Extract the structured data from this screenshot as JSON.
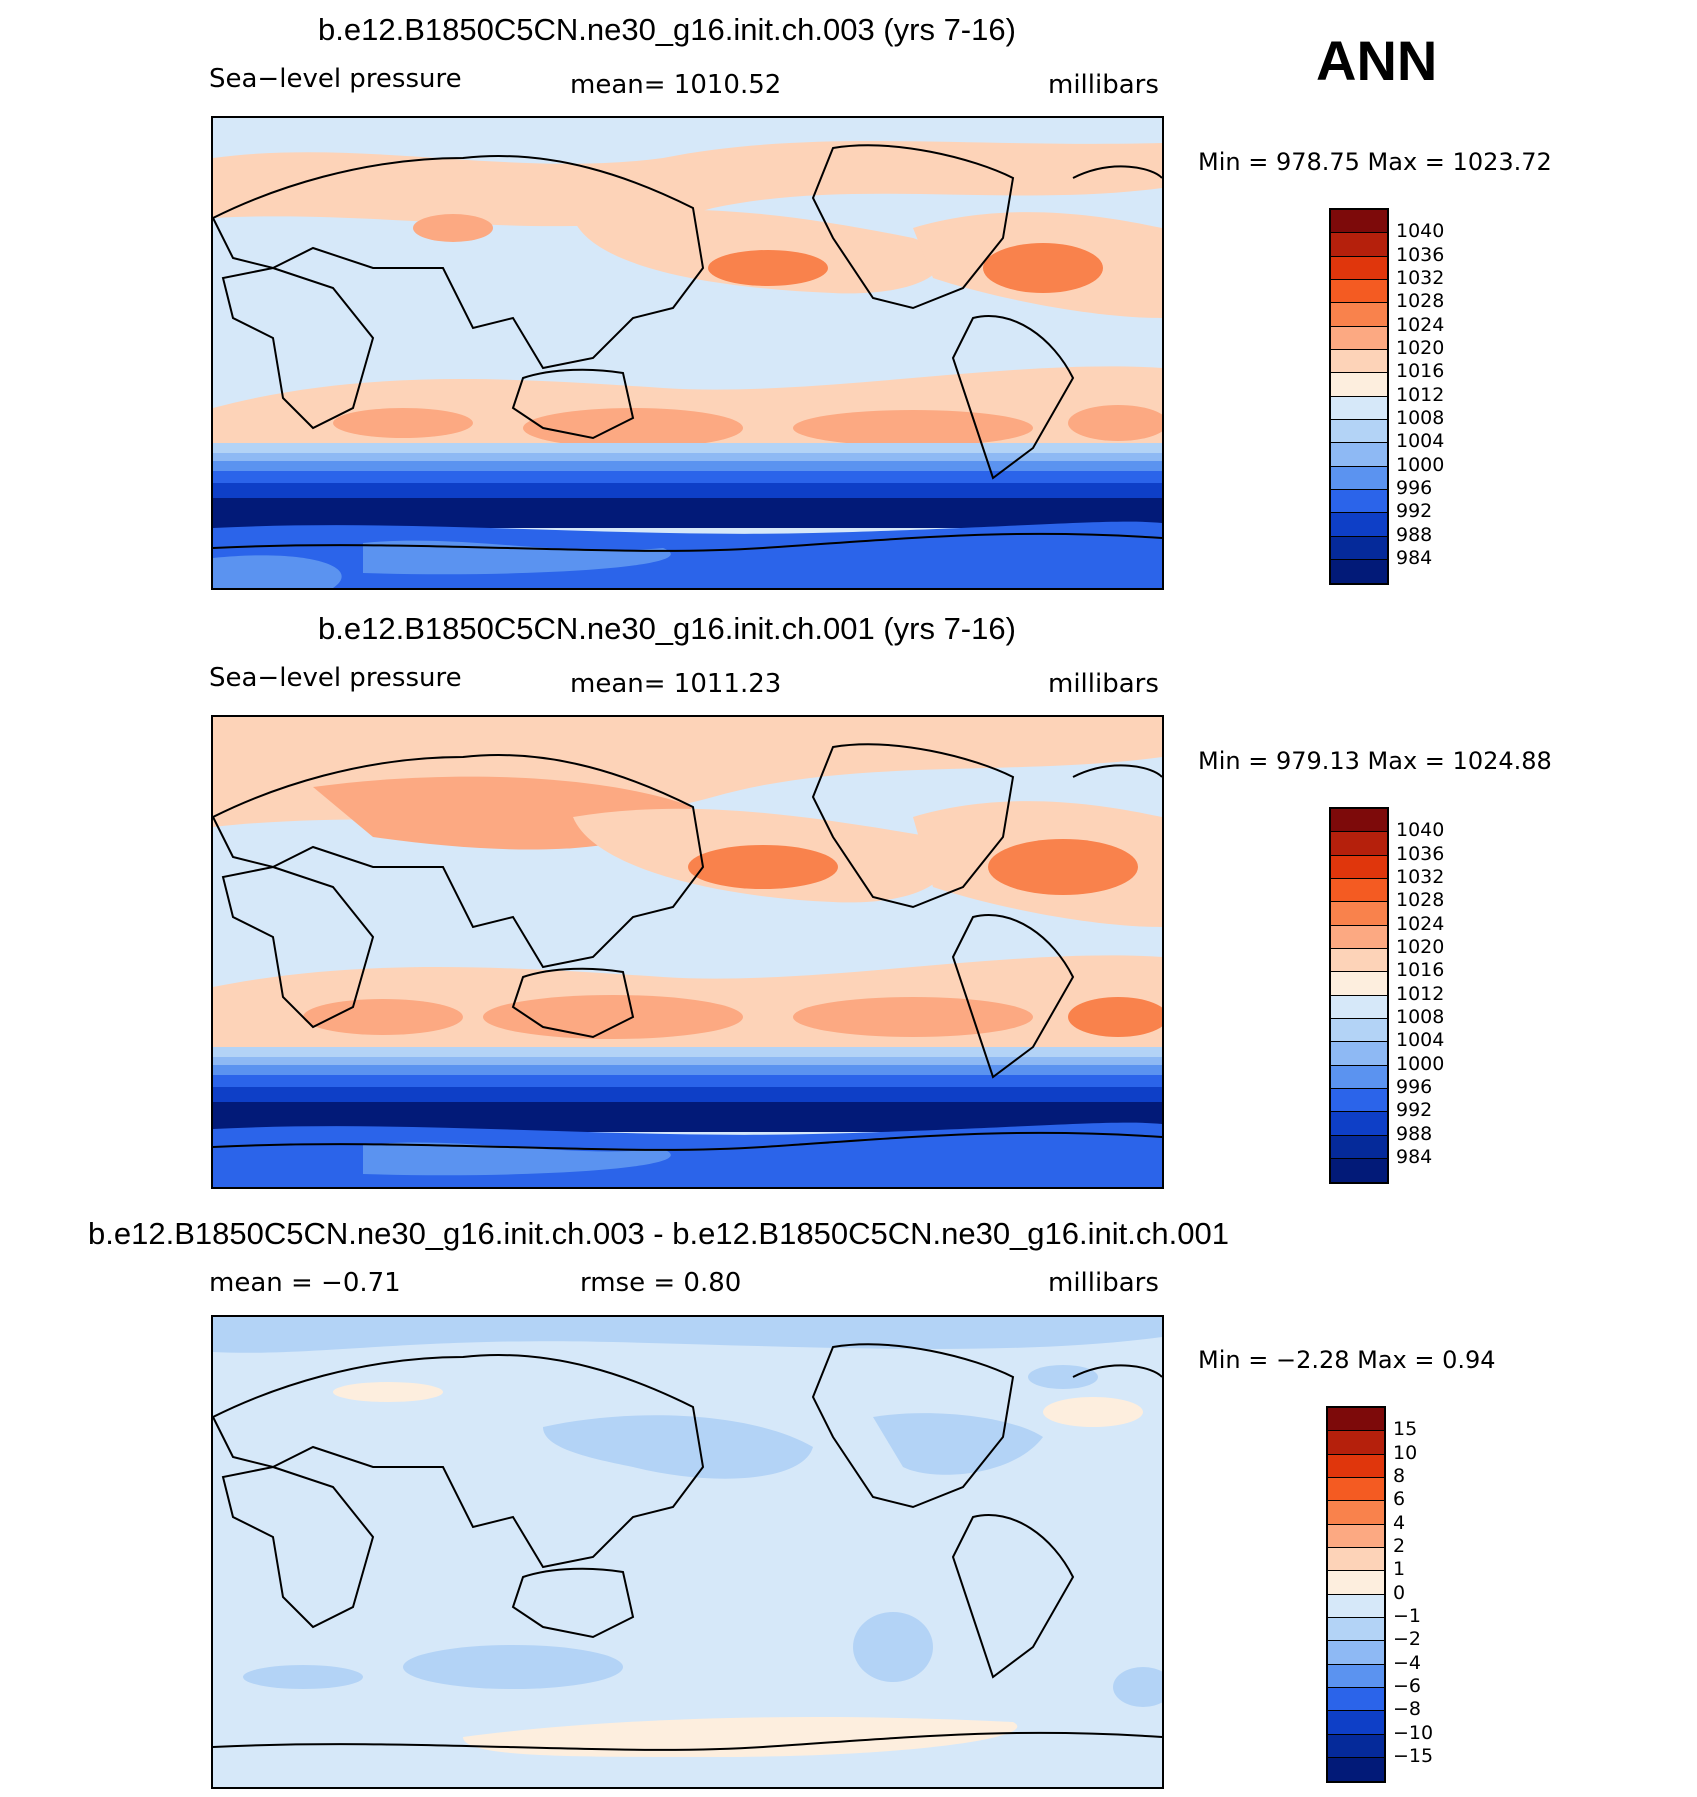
{
  "season": "ANN",
  "units": "millibars",
  "panels": [
    {
      "title": "b.e12.B1850C5CN.ne30_g16.init.ch.003 (yrs 7-16)",
      "left_label": "Sea−level  pressure",
      "center_label": "mean=  1010.52",
      "right_label": "millibars",
      "minmax": "Min  =  978.75  Max  =  1023.72"
    },
    {
      "title": "b.e12.B1850C5CN.ne30_g16.init.ch.001 (yrs 7-16)",
      "left_label": "Sea−level  pressure",
      "center_label": "mean=  1011.23",
      "right_label": "millibars",
      "minmax": "Min  =  979.13  Max  =  1024.88"
    },
    {
      "title": "b.e12.B1850C5CN.ne30_g16.init.ch.003 - b.e12.B1850C5CN.ne30_g16.init.ch.001",
      "left_label": "mean  =    −0.71",
      "center_label": "rmse  =      0.80",
      "right_label": "millibars",
      "minmax": "Min  =    −2.28  Max  =      0.94"
    }
  ],
  "chart_data": [
    {
      "type": "heatmap",
      "title": "b.e12.B1850C5CN.ne30_g16.init.ch.003 (yrs 7-16)",
      "variable": "Sea-level pressure",
      "mean": 1010.52,
      "min": 978.75,
      "max": 1023.72,
      "units": "millibars",
      "colorbar_labels": [
        "1040",
        "1036",
        "1032",
        "1028",
        "1024",
        "1020",
        "1016",
        "1012",
        "1008",
        "1004",
        "1000",
        "996",
        "992",
        "988",
        "984"
      ]
    },
    {
      "type": "heatmap",
      "title": "b.e12.B1850C5CN.ne30_g16.init.ch.001 (yrs 7-16)",
      "variable": "Sea-level pressure",
      "mean": 1011.23,
      "min": 979.13,
      "max": 1024.88,
      "units": "millibars",
      "colorbar_labels": [
        "1040",
        "1036",
        "1032",
        "1028",
        "1024",
        "1020",
        "1016",
        "1012",
        "1008",
        "1004",
        "1000",
        "996",
        "992",
        "988",
        "984"
      ]
    },
    {
      "type": "heatmap",
      "title": "b.e12.B1850C5CN.ne30_g16.init.ch.003 - b.e12.B1850C5CN.ne30_g16.init.ch.001",
      "mean": -0.71,
      "rmse": 0.8,
      "min": -2.28,
      "max": 0.94,
      "units": "millibars",
      "colorbar_labels": [
        "15",
        "10",
        "8",
        "6",
        "4",
        "2",
        "1",
        "0",
        "−1",
        "−2",
        "−4",
        "−6",
        "−8",
        "−10",
        "−15"
      ]
    }
  ],
  "colors": {
    "scale": [
      "#7d0a0a",
      "#b5200c",
      "#e0360c",
      "#f45b22",
      "#f9824c",
      "#fca982",
      "#fdd3b8",
      "#fdeede",
      "#d6e8f9",
      "#b3d3f6",
      "#8eb9f4",
      "#5b93f0",
      "#2b64ea",
      "#0e3fc7",
      "#052a9a",
      "#021a78"
    ]
  }
}
